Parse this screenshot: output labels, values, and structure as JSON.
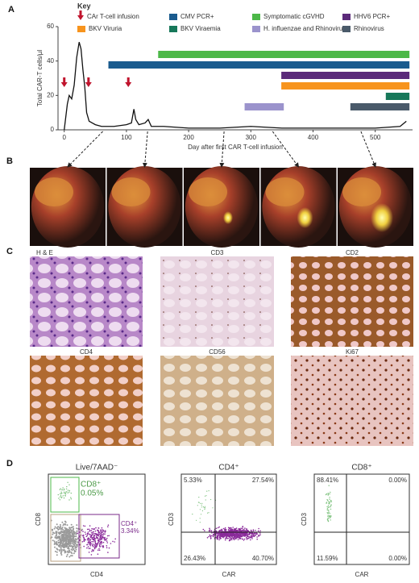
{
  "panel_labels": [
    "A",
    "B",
    "C",
    "D"
  ],
  "chart_data": {
    "type": "line",
    "y_label": "Total CAR-T cells/µl",
    "x_label": "Day after first CAR T-cell infusion",
    "xlim": [
      -10,
      560
    ],
    "ylim": [
      0,
      60
    ],
    "xticks": [
      0,
      100,
      200,
      300,
      400,
      500
    ],
    "yticks": [
      0,
      20,
      40,
      60
    ],
    "series": [
      {
        "color": "#111111",
        "x": [
          0,
          5,
          8,
          12,
          16,
          20,
          24,
          27,
          30,
          33,
          36,
          40,
          50,
          60,
          80,
          100,
          108,
          112,
          115,
          120,
          130,
          135,
          140,
          160,
          200,
          250,
          300,
          350,
          400,
          450,
          500,
          540,
          550
        ],
        "values": [
          0,
          15,
          20,
          18,
          26,
          42,
          51,
          47,
          35,
          25,
          10,
          5,
          3,
          2,
          2,
          3,
          4,
          12,
          6,
          3,
          4,
          6,
          2,
          2,
          1,
          1,
          2,
          1,
          1,
          1,
          1,
          2,
          5
        ]
      }
    ],
    "key_title": "Key",
    "infusion": {
      "name": "CAr T-cell infusion",
      "color": "#c0142d",
      "days": [
        0,
        39,
        103
      ]
    },
    "events": [
      {
        "name": "BKV Viruria",
        "color": "#f7941d",
        "start": 349,
        "end": 555
      },
      {
        "name": "CMV PCR+",
        "color": "#1a5b8e",
        "start": 71,
        "end": 555
      },
      {
        "name": "BKV Viraemia",
        "color": "#17785a",
        "start": 517,
        "end": 555
      },
      {
        "name": "Symptomatic cGVHD",
        "color": "#4cb848",
        "start": 151,
        "end": 555
      },
      {
        "name": "H. influenzae and Rhinovirus",
        "color": "#9b93cc",
        "start": 290,
        "end": 353
      },
      {
        "name": "HHV6 PCR+",
        "color": "#5b2a7a",
        "start": 349,
        "end": 555
      },
      {
        "name": "Rhinovirus",
        "color": "#4a5a6a",
        "start": 460,
        "end": 555
      }
    ],
    "scan_days": [
      62,
      134,
      257,
      335,
      477
    ]
  },
  "panel_c": {
    "labels": [
      "H & E",
      "CD3",
      "CD2",
      "CD4",
      "CD56",
      "Ki67"
    ]
  },
  "panel_d": {
    "plots": [
      {
        "title": "Live/7AAD⁻",
        "x_label": "CD4",
        "y_label": "CD8",
        "gates": [
          {
            "name": "CD8⁺",
            "value": "0.05%"
          },
          {
            "name": "CD4⁺",
            "value": "3.34%"
          }
        ]
      },
      {
        "title": "CD4⁺",
        "x_label": "CAR",
        "y_label": "CD3",
        "quadrants": [
          "5.33%",
          "27.54%",
          "26.43%",
          "40.70%"
        ]
      },
      {
        "title": "CD8⁺",
        "x_label": "CAR",
        "y_label": "CD3",
        "quadrants": [
          "88.41%",
          "0.00%",
          "11.59%",
          "0.00%"
        ]
      }
    ]
  }
}
